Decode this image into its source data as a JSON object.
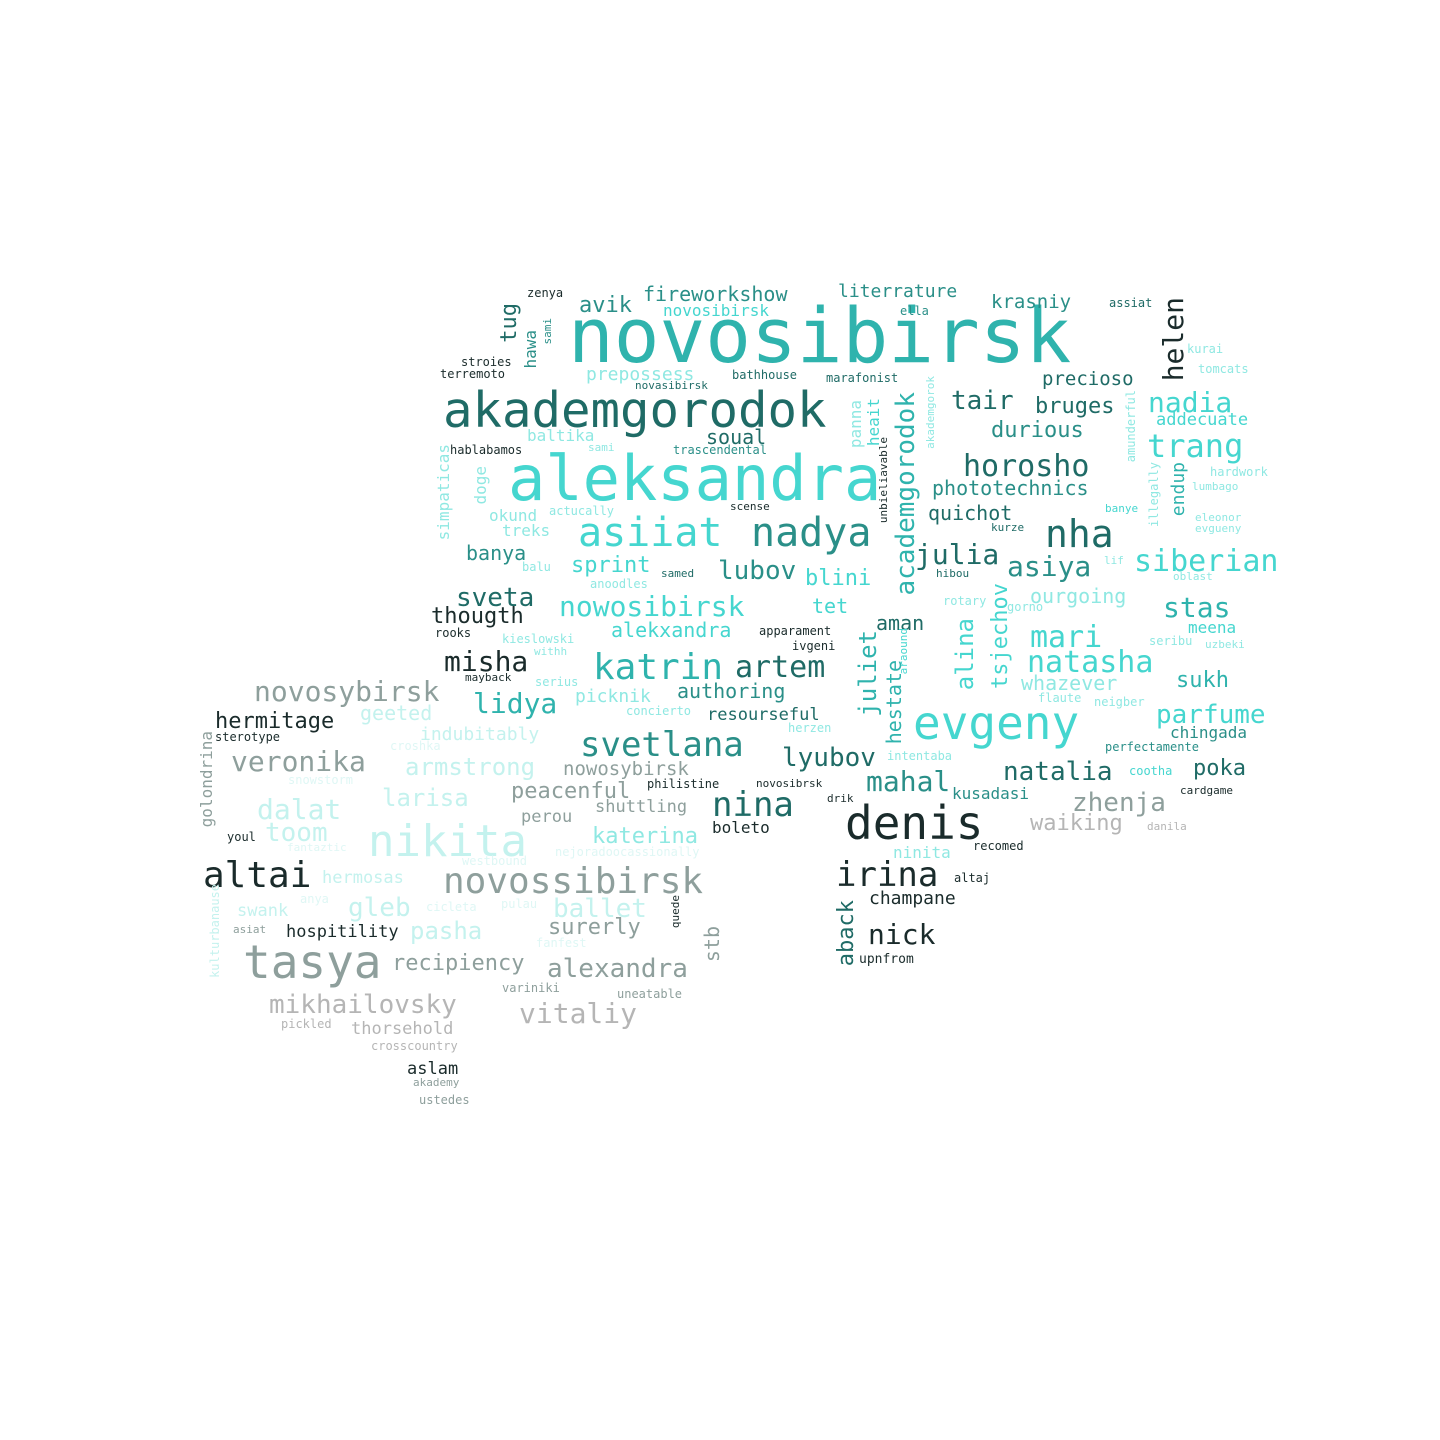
{
  "words": [
    "novosibirsk",
    "akademgorodok",
    "aleksandra",
    "asiiat",
    "nadya",
    "nha",
    "denis",
    "evgeny",
    "tasya",
    "nikita",
    "novossibirsk",
    "altai",
    "irina",
    "nina",
    "svetlana",
    "katrin",
    "artem",
    "trang",
    "nadia",
    "horosho",
    "siberian",
    "natasha",
    "mari",
    "stas",
    "julia",
    "asiya",
    "lubov",
    "blini",
    "sprint",
    "sveta",
    "nowosibirsk",
    "misha",
    "thougth",
    "lidya",
    "novosybirsk",
    "hermitage",
    "veronika",
    "dalat",
    "toom",
    "larisa",
    "armstrong",
    "gleb",
    "ballet",
    "pasha",
    "alexandra",
    "vitaliy",
    "mikhailovsky",
    "recipiency",
    "surerly",
    "stb",
    "nick",
    "aback",
    "champane",
    "upnfrom",
    "natalia",
    "zhenja",
    "waiking",
    "poka",
    "mahal",
    "lyubov",
    "helen",
    "tair",
    "bruges",
    "durious",
    "precioso",
    "krasniy",
    "fireworkshow",
    "literrature",
    "avik",
    "tug",
    "hawa",
    "zenya",
    "assiat",
    "ella",
    "novosibirsk",
    "stroies",
    "terremoto",
    "prepossess",
    "bathhouse",
    "marafonist",
    "novasibirsk",
    "hablabamos",
    "baltika",
    "soual",
    "trascendental",
    "simpaticas",
    "doge",
    "okund",
    "treks",
    "banya",
    "quichot",
    "phototechnics",
    "academgorodok",
    "tsjechov",
    "alina",
    "juliet",
    "hestate",
    "aman",
    "tet",
    "ourgoing",
    "whazever",
    "sukh",
    "parfume",
    "chingada",
    "authoring",
    "picknik",
    "resourseful",
    "peacenful",
    "shuttling",
    "perou",
    "katerina",
    "boleto",
    "nowosybirsk",
    "indubitably",
    "geeted",
    "croshka",
    "snowstorm",
    "fantaztic",
    "westbound",
    "hermosas",
    "swank",
    "anya",
    "asiat",
    "hospitility",
    "kulturbanause",
    "golondrina",
    "youl",
    "sterotype",
    "pickled",
    "thorsehold",
    "crosscountry",
    "aslam",
    "akademy",
    "ustedes",
    "varinikі",
    "uneatable",
    "quede",
    "cicleta",
    "pulau",
    "fanfest",
    "nejoradoocassionally",
    "ninita",
    "recomed",
    "altaj",
    "kusadasi",
    "drik",
    "novosibrsk",
    "philistine",
    "herzen",
    "intentaba",
    "perfectamente",
    "cootha",
    "cardgame",
    "danila",
    "flaute",
    "neigber",
    "meena",
    "seribu",
    "uzbeki",
    "rotary",
    "gorno",
    "kieslowski",
    "withh",
    "serius",
    "concierto",
    "mayback",
    "rooks",
    "apparament",
    "ivgeni",
    "araound",
    "alekxandra",
    "anoodles",
    "samed",
    "balu",
    "hibou",
    "oblast",
    "lif",
    "kurze",
    "banye",
    "eleonor",
    "evgueny",
    "lumbago",
    "hardwork",
    "tomcats",
    "kurai",
    "addecuate",
    "endup",
    "illegally",
    "amunderful",
    "heait",
    "panna",
    "unbieliavable",
    "akademgorok",
    "actucally",
    "scense",
    "sami"
  ]
}
